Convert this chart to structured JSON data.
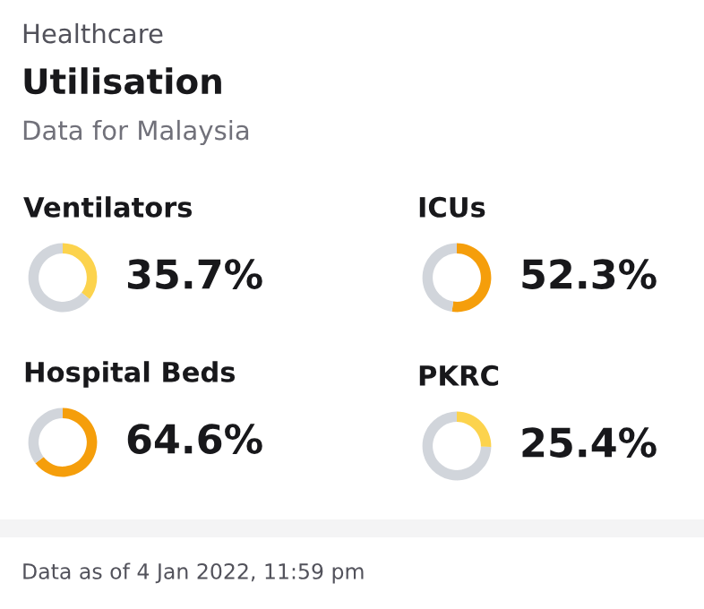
{
  "chart_data": [
    {
      "type": "other",
      "subtitle": "Healthcare",
      "title": "Utilisation",
      "annotations": [
        "Data for Malaysia",
        "Data as of 4 Jan 2022, 11:59 pm"
      ]
    },
    {
      "type": "donut",
      "title": "Ventilators",
      "categories": [
        null,
        null
      ],
      "values": [
        35.7,
        64.3
      ],
      "colors": [
        "#fcd34d",
        "#d1d5db"
      ],
      "value_labels": [
        "35.7%",
        null
      ]
    },
    {
      "type": "donut",
      "title": "ICUs",
      "categories": [
        null,
        null
      ],
      "values": [
        52.3,
        47.7
      ],
      "colors": [
        "#f59e0b",
        "#d1d5db"
      ],
      "value_labels": [
        "52.3%",
        null
      ]
    },
    {
      "type": "donut",
      "title": "Hospital Beds",
      "categories": [
        null,
        null
      ],
      "values": [
        64.6,
        35.4
      ],
      "colors": [
        "#f59e0b",
        "#d1d5db"
      ],
      "value_labels": [
        "64.6%",
        null
      ]
    },
    {
      "type": "donut",
      "title": "PKRC",
      "categories": [
        null,
        null
      ],
      "values": [
        25.4,
        74.6
      ],
      "colors": [
        "#fcd34d",
        "#d1d5db"
      ],
      "value_labels": [
        "25.4%",
        null
      ]
    }
  ]
}
